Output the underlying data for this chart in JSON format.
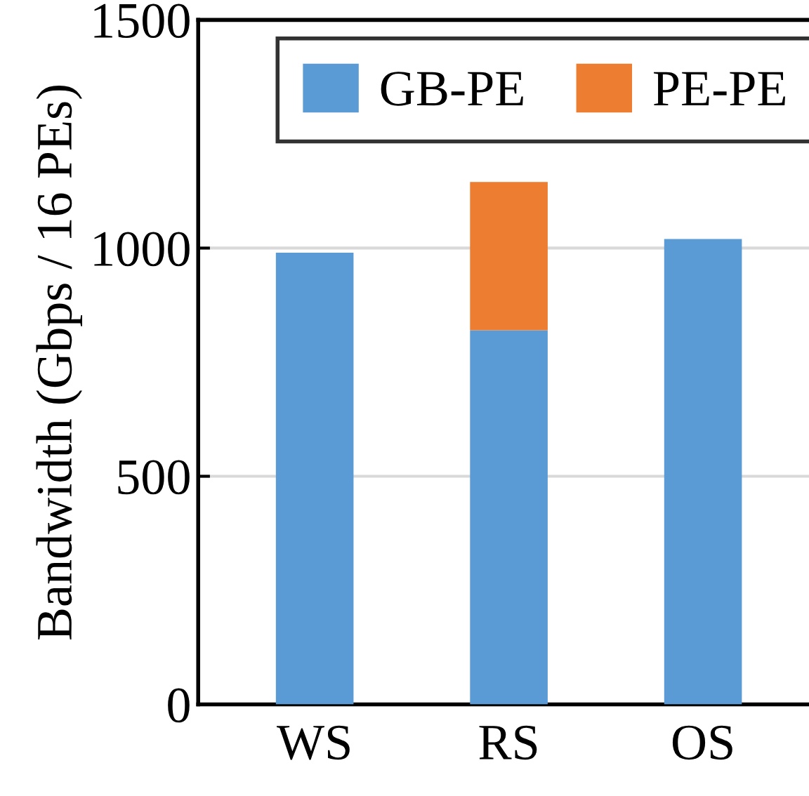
{
  "chart_data": {
    "type": "bar",
    "stacked": true,
    "ylabel": "Bandwidth (Gbps / 16 PEs)",
    "categories": [
      "WS",
      "RS",
      "OS"
    ],
    "series": [
      {
        "name": "GB-PE",
        "color": "#5b9bd5",
        "values": [
          990,
          820,
          1020
        ]
      },
      {
        "name": "PE-PE",
        "color": "#ed7d31",
        "values": [
          0,
          325,
          0
        ]
      }
    ],
    "ylim": [
      0,
      1500
    ],
    "yticks": [
      0,
      500,
      1000,
      1500
    ],
    "grid": "y",
    "legend": "top"
  }
}
